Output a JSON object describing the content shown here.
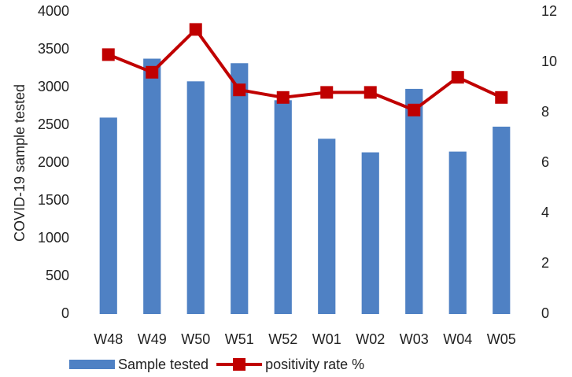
{
  "chart_data": {
    "type": "bar",
    "ylabel": "COVID-19 sample tested",
    "categories": [
      "W48",
      "W49",
      "W50",
      "W51",
      "W52",
      "W01",
      "W02",
      "W03",
      "W04",
      "W05"
    ],
    "series": [
      {
        "name": "Sample tested",
        "type": "bar",
        "color": "#4f81c4",
        "values": [
          2600,
          3380,
          3080,
          3320,
          2830,
          2320,
          2140,
          2980,
          2150,
          2480
        ]
      },
      {
        "name": "positivity rate %",
        "type": "line",
        "axis": "y2",
        "color": "#c00000",
        "values": [
          10.3,
          9.6,
          11.3,
          8.9,
          8.6,
          8.8,
          8.8,
          8.1,
          9.4,
          8.6
        ]
      }
    ],
    "ylim": [
      0,
      4000
    ],
    "yticks": [
      0,
      500,
      1000,
      1500,
      2000,
      2500,
      3000,
      3500,
      4000
    ],
    "y2lim": [
      0,
      12
    ],
    "y2ticks": [
      0,
      2,
      4,
      6,
      8,
      10,
      12
    ],
    "grid": false,
    "legend": "bottom"
  }
}
